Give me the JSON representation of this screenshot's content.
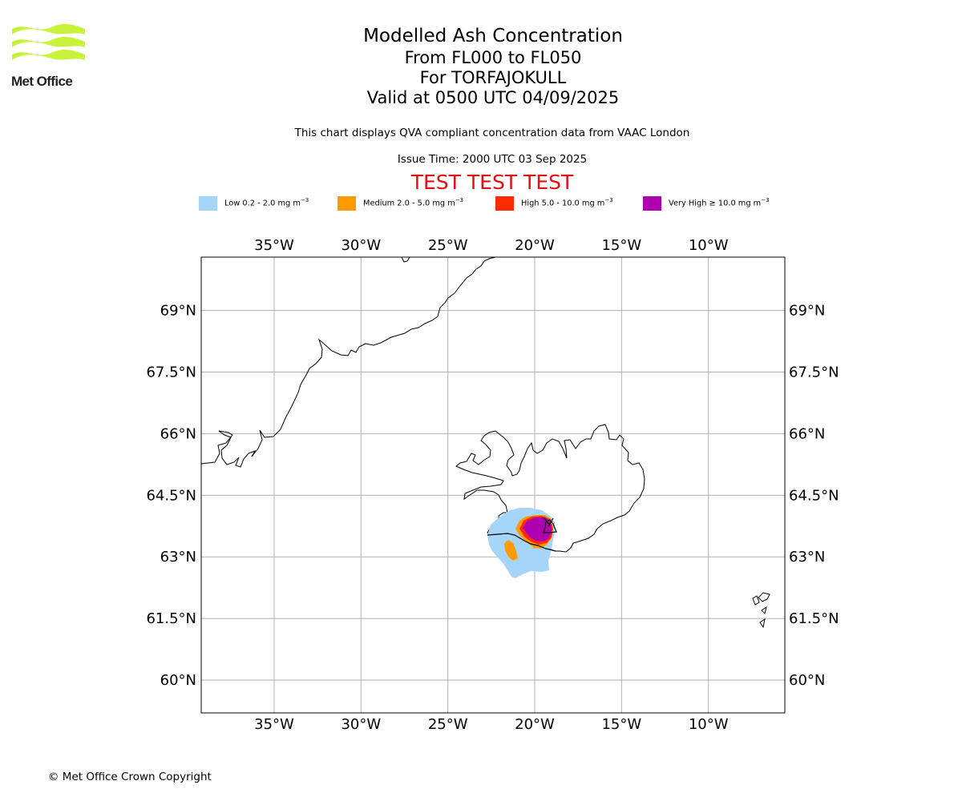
{
  "header": {
    "logo_text": "Met Office",
    "title": "Modelled Ash Concentration",
    "levels": "From FL000 to FL050",
    "volcano": "For TORFAJOKULL",
    "valid": "Valid at 0500 UTC 04/09/2025",
    "description": "This chart displays QVA compliant concentration data from VAAC London",
    "issue_time": "Issue Time: 2000 UTC 03 Sep 2025",
    "test_banner": "TEST TEST TEST"
  },
  "legend": [
    {
      "label": "Low 0.2 - 2.0 mg m",
      "sup": "−3",
      "color": "#a6d5fa"
    },
    {
      "label": "Medium 2.0 - 5.0 mg m",
      "sup": "−3",
      "color": "#ff9a00"
    },
    {
      "label": "High 5.0 - 10.0 mg m",
      "sup": "−3",
      "color": "#ff2a00"
    },
    {
      "label": "Very High  ≥  10.0 mg m",
      "sup": "−3",
      "color": "#ae00b1"
    }
  ],
  "map": {
    "lon_range": [
      -39.2,
      -5.6
    ],
    "lat_range": [
      59.2,
      70.3
    ],
    "lon_ticks": [
      {
        "value": -35,
        "label": "35°W"
      },
      {
        "value": -30,
        "label": "30°W"
      },
      {
        "value": -25,
        "label": "25°W"
      },
      {
        "value": -20,
        "label": "20°W"
      },
      {
        "value": -15,
        "label": "15°W"
      },
      {
        "value": -10,
        "label": "10°W"
      }
    ],
    "lat_ticks": [
      {
        "value": 69,
        "label": "69°N"
      },
      {
        "value": 67.5,
        "label": "67.5°N"
      },
      {
        "value": 66,
        "label": "66°N"
      },
      {
        "value": 64.5,
        "label": "64.5°N"
      },
      {
        "value": 63,
        "label": "63°N"
      },
      {
        "value": 61.5,
        "label": "61.5°N"
      },
      {
        "value": 60,
        "label": "60°N"
      }
    ],
    "grid": true,
    "grid_color": "#b0b0b0"
  },
  "footer": {
    "copyright": "© Met Office Crown Copyright"
  }
}
